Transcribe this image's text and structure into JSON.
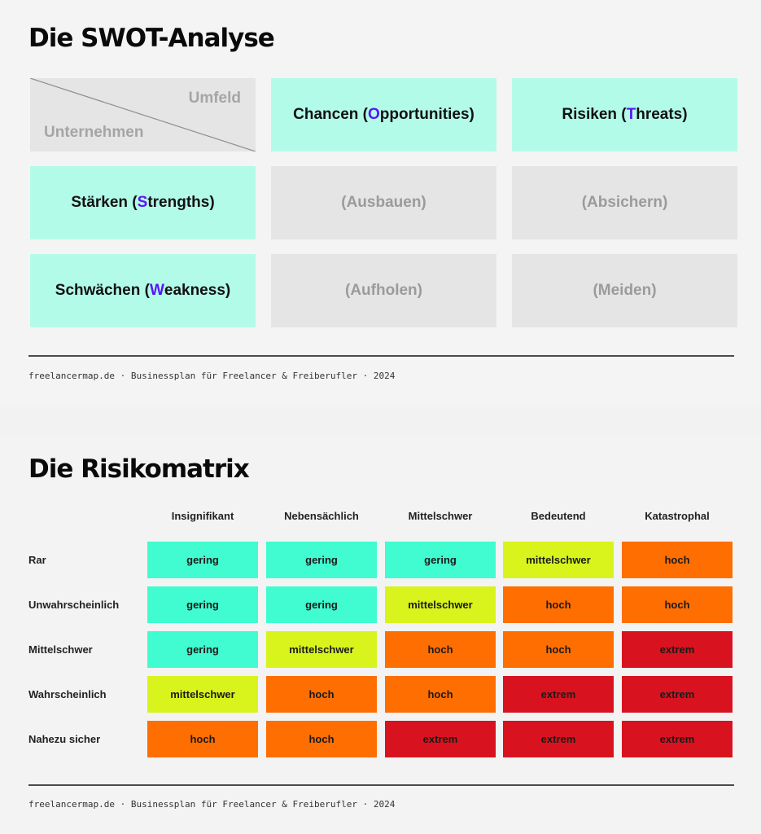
{
  "swot": {
    "title": "Die SWOT-Analyse",
    "corner": {
      "top_label": "Umfeld",
      "bottom_label": "Unternehmen"
    },
    "columns": [
      {
        "prefix": "Chancen (",
        "accent": "O",
        "suffix": "pportunities)"
      },
      {
        "prefix": "Risiken (",
        "accent": "T",
        "suffix": "hreats)"
      }
    ],
    "rows": [
      {
        "prefix": "Stärken (",
        "accent": "S",
        "suffix": "trengths)",
        "cells": [
          "(Ausbauen)",
          "(Absichern)"
        ]
      },
      {
        "prefix": "Schwächen (",
        "accent": "W",
        "suffix": "eakness)",
        "cells": [
          "(Aufholen)",
          "(Meiden)"
        ]
      }
    ],
    "footer": "freelancermap.de · Businessplan für Freelancer & Freiberufler · 2024"
  },
  "risk": {
    "title": "Die Risikomatrix",
    "columns": [
      "Insignifikant",
      "Nebensächlich",
      "Mittelschwer",
      "Bedeutend",
      "Katastrophal"
    ],
    "rows": [
      {
        "label": "Rar",
        "cells": [
          "gering",
          "gering",
          "gering",
          "mittelschwer",
          "hoch"
        ]
      },
      {
        "label": "Unwahrscheinlich",
        "cells": [
          "gering",
          "gering",
          "mittelschwer",
          "hoch",
          "hoch"
        ]
      },
      {
        "label": "Mittelschwer",
        "cells": [
          "gering",
          "mittelschwer",
          "hoch",
          "hoch",
          "extrem"
        ]
      },
      {
        "label": "Wahrscheinlich",
        "cells": [
          "mittelschwer",
          "hoch",
          "hoch",
          "extrem",
          "extrem"
        ]
      },
      {
        "label": "Nahezu sicher",
        "cells": [
          "hoch",
          "hoch",
          "extrem",
          "extrem",
          "extrem"
        ]
      }
    ],
    "level_colors": {
      "gering": "#40fcd0",
      "mittelschwer": "#d8f41c",
      "hoch": "#ff6e00",
      "extrem": "#d8131f"
    },
    "footer": "freelancermap.de · Businessplan für Freelancer & Freiberufler · 2024"
  }
}
